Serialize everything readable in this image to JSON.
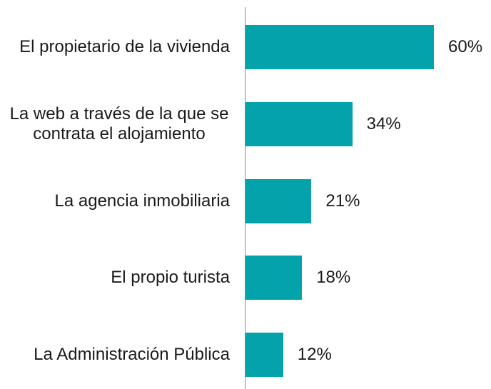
{
  "chart_data": {
    "type": "bar",
    "orientation": "horizontal",
    "categories": [
      "El propietario de la vivienda",
      "La web a través de la que se contrata el alojamiento",
      "La agencia inmobiliaria",
      "El propio turista",
      "La Administración Pública"
    ],
    "values": [
      60,
      34,
      21,
      18,
      12
    ],
    "value_labels": [
      "60%",
      "34%",
      "21%",
      "18%",
      "12%"
    ],
    "color": "#04a3ac"
  }
}
